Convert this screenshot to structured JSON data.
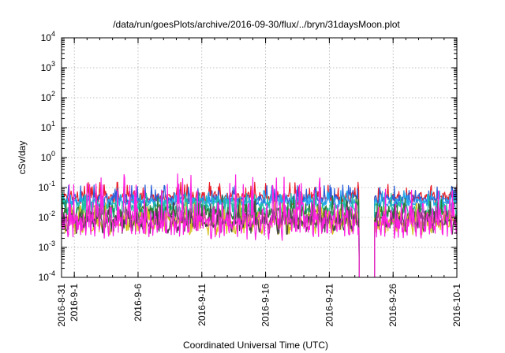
{
  "chart_data": {
    "type": "line",
    "title": "/data/run/goesPlots/archive/2016-09-30/flux/../bryn/31daysMoon.plot",
    "xlabel": "Coordinated Universal Time (UTC)",
    "ylabel": "cSv/day",
    "y_scale": "log",
    "ylim": [
      0.0001,
      10000
    ],
    "y_ticks": [
      {
        "base": "10",
        "exp": "4",
        "value": 10000
      },
      {
        "base": "10",
        "exp": "3",
        "value": 1000
      },
      {
        "base": "10",
        "exp": "2",
        "value": 100
      },
      {
        "base": "10",
        "exp": "1",
        "value": 10
      },
      {
        "base": "10",
        "exp": "0",
        "value": 1
      },
      {
        "base": "10",
        "exp": "-1",
        "value": 0.1
      },
      {
        "base": "10",
        "exp": "-2",
        "value": 0.01
      },
      {
        "base": "10",
        "exp": "-3",
        "value": 0.001
      },
      {
        "base": "10",
        "exp": "-4",
        "value": 0.0001
      }
    ],
    "xlim": [
      "2016-08-31",
      "2016-10-01"
    ],
    "x_ticks": [
      {
        "label": "2016-8-31",
        "date": "2016-08-31"
      },
      {
        "label": "2016-9-1",
        "date": "2016-09-01"
      },
      {
        "label": "2016-9-6",
        "date": "2016-09-06"
      },
      {
        "label": "2016-9-11",
        "date": "2016-09-11"
      },
      {
        "label": "2016-9-16",
        "date": "2016-09-16"
      },
      {
        "label": "2016-9-21",
        "date": "2016-09-21"
      },
      {
        "label": "2016-9-26",
        "date": "2016-09-26"
      },
      {
        "label": "2016-10-1",
        "date": "2016-10-01"
      }
    ],
    "grid": true,
    "gap": {
      "start": "2016-09-23 08:00",
      "end": "2016-09-24 12:00",
      "drop_to": 0.0001
    },
    "series": [
      {
        "color": "#e8202a",
        "base": 0.048,
        "spike": 0.085,
        "noise": 0.16,
        "period": 0.45,
        "seed": 11
      },
      {
        "color": "#2b5fd9",
        "base": 0.04,
        "spike": 0.07,
        "noise": 0.15,
        "period": 0.5,
        "seed": 23
      },
      {
        "color": "#22aaee",
        "base": 0.032,
        "spike": 0.05,
        "noise": 0.13,
        "period": 0.55,
        "seed": 37
      },
      {
        "color": "#1fbfa0",
        "base": 0.018,
        "spike": 0.03,
        "noise": 0.22,
        "period": 0.6,
        "seed": 41
      },
      {
        "color": "#2e7d32",
        "base": 0.013,
        "spike": 0.022,
        "noise": 0.25,
        "period": 0.62,
        "seed": 53
      },
      {
        "color": "#d4c21f",
        "base": 0.007,
        "spike": 0.012,
        "noise": 0.28,
        "period": 0.7,
        "seed": 67
      },
      {
        "color": "#444444",
        "base": 0.0075,
        "spike": 0.013,
        "noise": 0.28,
        "period": 0.72,
        "seed": 71
      },
      {
        "color": "#ff1fe0",
        "base": 0.0085,
        "spike": 0.055,
        "noise": 0.45,
        "period": 0.35,
        "seed": 89
      }
    ]
  }
}
